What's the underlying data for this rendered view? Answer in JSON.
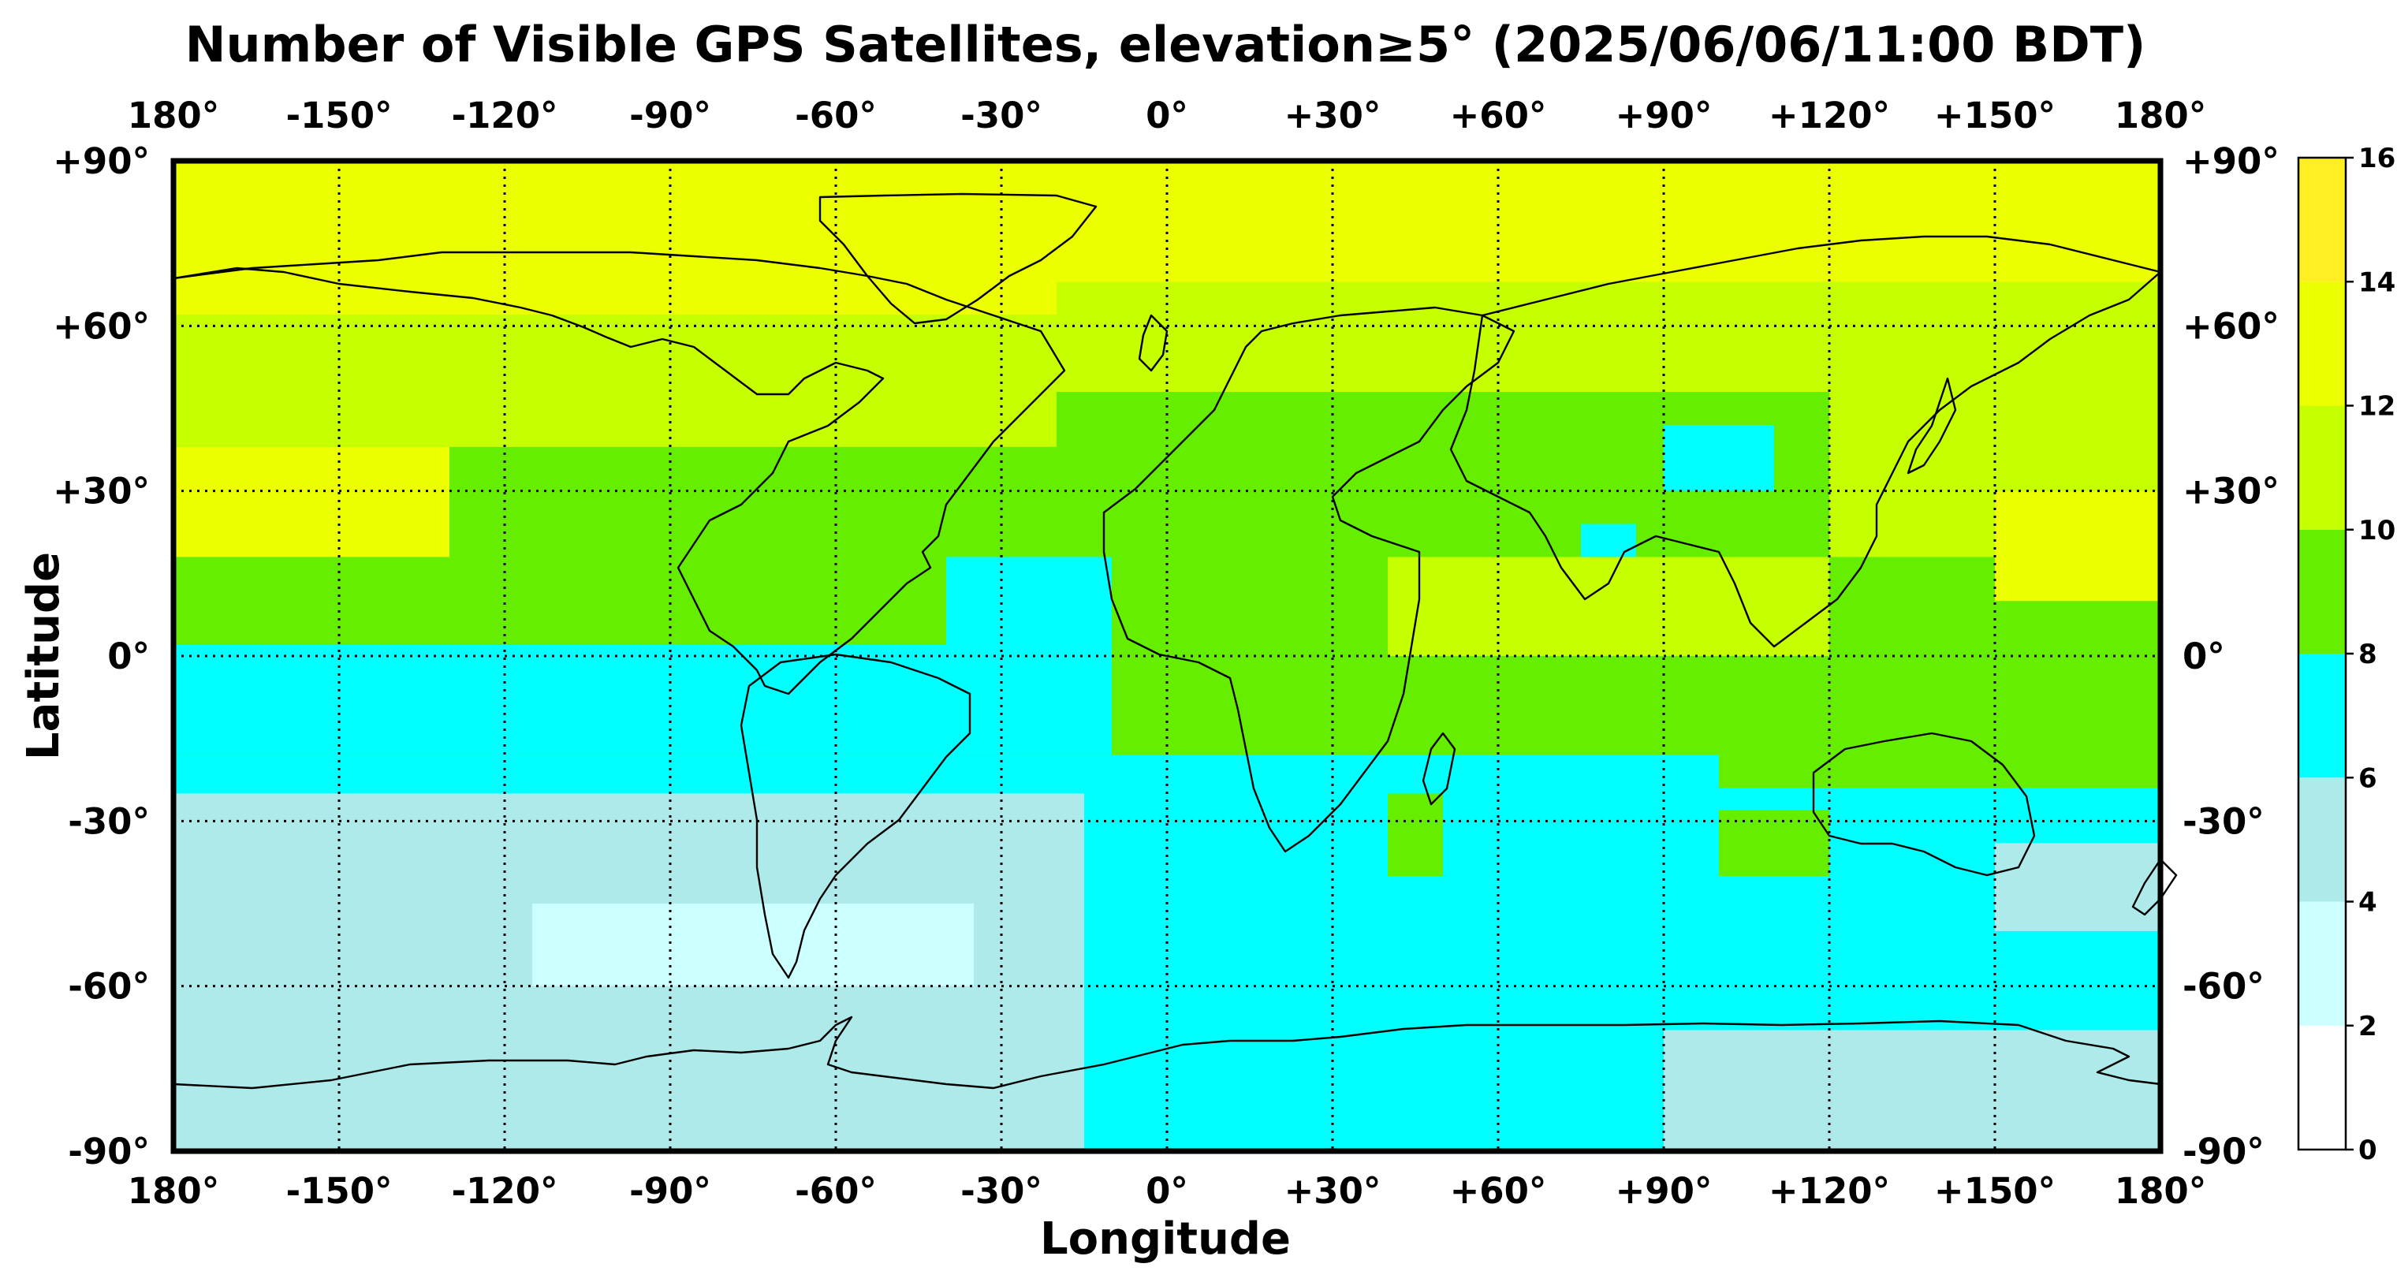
{
  "title": "Number of Visible GPS Satellites, elevation≥5° (2025/06/06/11:00 BDT)",
  "xlabel": "Longitude",
  "ylabel": "Latitude",
  "lon_ticks": [
    {
      "value": -180,
      "label": "180°"
    },
    {
      "value": -150,
      "label": "-150°"
    },
    {
      "value": -120,
      "label": "-120°"
    },
    {
      "value": -90,
      "label": "-90°"
    },
    {
      "value": -60,
      "label": "-60°"
    },
    {
      "value": -30,
      "label": "-30°"
    },
    {
      "value": 0,
      "label": "0°"
    },
    {
      "value": 30,
      "label": "+30°"
    },
    {
      "value": 60,
      "label": "+60°"
    },
    {
      "value": 90,
      "label": "+90°"
    },
    {
      "value": 120,
      "label": "+120°"
    },
    {
      "value": 150,
      "label": "+150°"
    },
    {
      "value": 180,
      "label": "180°"
    }
  ],
  "lat_ticks": [
    {
      "value": 90,
      "label": "+90°"
    },
    {
      "value": 60,
      "label": "+60°"
    },
    {
      "value": 30,
      "label": "+30°"
    },
    {
      "value": 0,
      "label": "0°"
    },
    {
      "value": -30,
      "label": "-30°"
    },
    {
      "value": -60,
      "label": "-60°"
    },
    {
      "value": -90,
      "label": "-90°"
    }
  ],
  "colorbar": {
    "ticks": [
      "0",
      "2",
      "4",
      "6",
      "8",
      "10",
      "12",
      "14",
      "16"
    ],
    "bins": [
      {
        "min": 0,
        "max": 2,
        "color": "#ffffff"
      },
      {
        "min": 2,
        "max": 4,
        "color": "#ccffff"
      },
      {
        "min": 4,
        "max": 6,
        "color": "#aeeaea"
      },
      {
        "min": 6,
        "max": 8,
        "color": "#00ffff"
      },
      {
        "min": 8,
        "max": 10,
        "color": "#66ee00"
      },
      {
        "min": 10,
        "max": 12,
        "color": "#c6ff00"
      },
      {
        "min": 12,
        "max": 14,
        "color": "#ecff00"
      },
      {
        "min": 14,
        "max": 16,
        "color": "#ffee22"
      }
    ]
  },
  "chart_data": {
    "type": "heatmap",
    "title": "Number of Visible GPS Satellites, elevation≥5° (2025/06/06/11:00 BDT)",
    "xlabel": "Longitude",
    "ylabel": "Latitude",
    "xlim": [
      -180,
      180
    ],
    "ylim": [
      -90,
      90
    ],
    "grid": true,
    "colorbar_range": [
      0,
      16
    ],
    "regions": [
      {
        "lon": [
          -180,
          180
        ],
        "lat": [
          -90,
          90
        ],
        "value": 8
      },
      {
        "lon": [
          -180,
          180
        ],
        "lat": [
          62,
          90
        ],
        "value": 13
      },
      {
        "lon": [
          -180,
          -120
        ],
        "lat": [
          38,
          62
        ],
        "value": 11
      },
      {
        "lon": [
          -120,
          -20
        ],
        "lat": [
          38,
          62
        ],
        "value": 11
      },
      {
        "lon": [
          -20,
          180
        ],
        "lat": [
          68,
          90
        ],
        "value": 13
      },
      {
        "lon": [
          -20,
          180
        ],
        "lat": [
          48,
          68
        ],
        "value": 11
      },
      {
        "lon": [
          -180,
          -130
        ],
        "lat": [
          18,
          38
        ],
        "value": 13
      },
      {
        "lon": [
          120,
          180
        ],
        "lat": [
          18,
          48
        ],
        "value": 11
      },
      {
        "lon": [
          150,
          180
        ],
        "lat": [
          10,
          30
        ],
        "value": 13
      },
      {
        "lon": [
          40,
          120
        ],
        "lat": [
          0,
          18
        ],
        "value": 11
      },
      {
        "lon": [
          90,
          110
        ],
        "lat": [
          30,
          42
        ],
        "value": 7
      },
      {
        "lon": [
          75,
          85
        ],
        "lat": [
          18,
          24
        ],
        "value": 7
      },
      {
        "lon": [
          -180,
          180
        ],
        "lat": [
          -30,
          -18
        ],
        "value": 7
      },
      {
        "lon": [
          -180,
          -30
        ],
        "lat": [
          -18,
          2
        ],
        "value": 7
      },
      {
        "lon": [
          -40,
          -10
        ],
        "lat": [
          -18,
          18
        ],
        "value": 7
      },
      {
        "lon": [
          100,
          180
        ],
        "lat": [
          -24,
          -10
        ],
        "value": 9
      },
      {
        "lon": [
          -180,
          180
        ],
        "lat": [
          -90,
          -30
        ],
        "value": 7
      },
      {
        "lon": [
          -180,
          -15
        ],
        "lat": [
          -90,
          -25
        ],
        "value": 5
      },
      {
        "lon": [
          -115,
          -35
        ],
        "lat": [
          -60,
          -45
        ],
        "value": 3
      },
      {
        "lon": [
          90,
          180
        ],
        "lat": [
          -90,
          -68
        ],
        "value": 5
      },
      {
        "lon": [
          150,
          180
        ],
        "lat": [
          -50,
          -34
        ],
        "value": 5
      },
      {
        "lon": [
          40,
          50
        ],
        "lat": [
          -40,
          -25
        ],
        "value": 9
      },
      {
        "lon": [
          100,
          120
        ],
        "lat": [
          -40,
          -28
        ],
        "value": 9
      }
    ]
  }
}
